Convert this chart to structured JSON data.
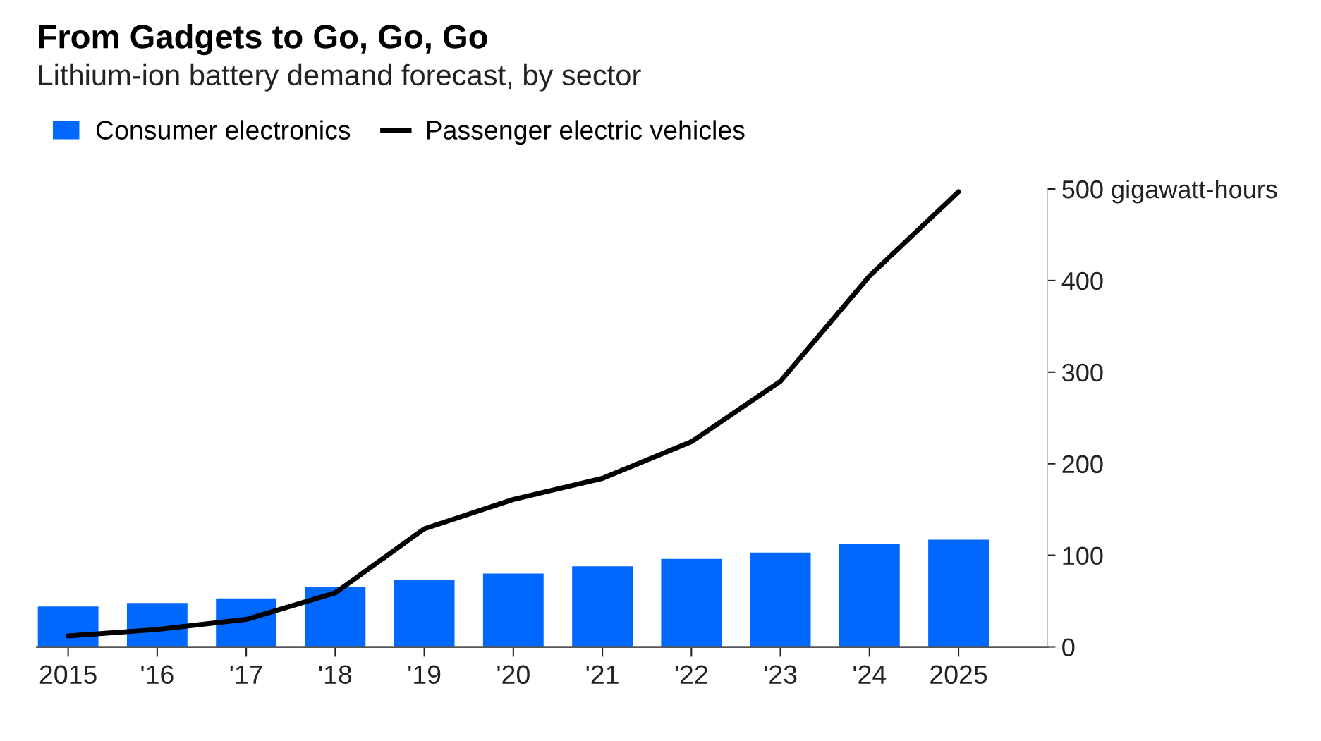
{
  "chart_data": {
    "type": "bar",
    "title": "From Gadgets to Go, Go, Go",
    "subtitle": "Lithium-ion battery demand forecast, by sector",
    "categories": [
      "2015",
      "'16",
      "'17",
      "'18",
      "'19",
      "'20",
      "'21",
      "'22",
      "'23",
      "'24",
      "2025"
    ],
    "series": [
      {
        "name": "Consumer electronics",
        "color": "#0068ff",
        "values": [
          44,
          48,
          53,
          65,
          73,
          80,
          88,
          96,
          103,
          112,
          117
        ]
      },
      {
        "name": "Passenger electric vehicles",
        "type": "line",
        "color": "#000000",
        "values": [
          12,
          19,
          30,
          59,
          129,
          161,
          184,
          224,
          290,
          405,
          497
        ]
      }
    ],
    "ylim": [
      0,
      500
    ],
    "yticks": [
      0,
      100,
      200,
      300,
      400,
      {
        "value": 500,
        "label": "500 gigawatt-hours"
      }
    ],
    "grid": false,
    "legend": "top left",
    "marker": "none",
    "line_style": "solid"
  }
}
